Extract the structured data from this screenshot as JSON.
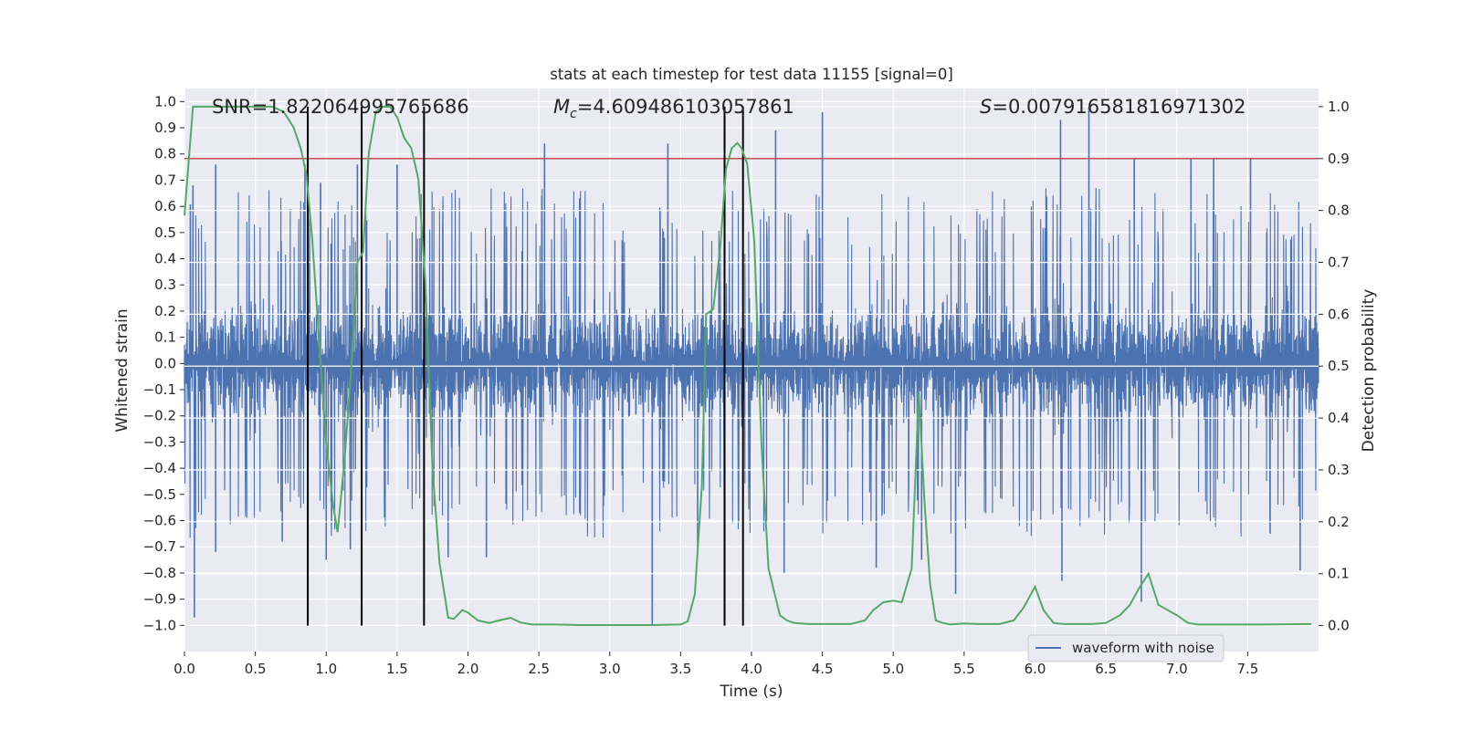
{
  "chart_data": {
    "type": "line",
    "title": "stats at each timestep for test data 11155 [signal=0]",
    "xlabel": "Time (s)",
    "ylabel_left": "Whitened strain",
    "ylabel_right": "Detection probability",
    "xlim": [
      0.0,
      8.0
    ],
    "ylim_left": [
      -1.1,
      1.05
    ],
    "ylim_right": [
      -0.05,
      1.035
    ],
    "xticks": [
      0.0,
      0.5,
      1.0,
      1.5,
      2.0,
      2.5,
      3.0,
      3.5,
      4.0,
      4.5,
      5.0,
      5.5,
      6.0,
      6.5,
      7.0,
      7.5
    ],
    "xtick_labels": [
      "0.0",
      "0.5",
      "1.0",
      "1.5",
      "2.0",
      "2.5",
      "3.0",
      "3.5",
      "4.0",
      "4.5",
      "5.0",
      "5.5",
      "6.0",
      "6.5",
      "7.0",
      "7.5"
    ],
    "yticks_left": [
      1.0,
      0.9,
      0.8,
      0.7,
      0.6,
      0.5,
      0.4,
      0.3,
      0.2,
      0.1,
      0.0,
      -0.1,
      -0.2,
      -0.3,
      -0.4,
      -0.5,
      -0.6,
      -0.7,
      -0.8,
      -0.9,
      -1.0
    ],
    "ytick_labels_left": [
      "1.0",
      "0.9",
      "0.8",
      "0.7",
      "0.6",
      "0.5",
      "0.4",
      "0.3",
      "0.2",
      "0.1",
      "0.0",
      "−0.1",
      "−0.2",
      "−0.3",
      "−0.4",
      "−0.5",
      "−0.6",
      "−0.7",
      "−0.8",
      "−0.9",
      "−1.0"
    ],
    "yticks_right": [
      1.0,
      0.9,
      0.8,
      0.7,
      0.6,
      0.5,
      0.4,
      0.3,
      0.2,
      0.1,
      0.0
    ],
    "ytick_labels_right": [
      "1.0",
      "0.9",
      "0.8",
      "0.7",
      "0.6",
      "0.5",
      "0.4",
      "0.3",
      "0.2",
      "0.1",
      "0.0"
    ],
    "annotations": {
      "snr": "SNR=1.822064995765686",
      "mc_symbol": "M",
      "mc_sub": "c",
      "mc_value": "=4.609486103057861",
      "s_symbol": "S",
      "s_value": "=0.007916581816971302"
    },
    "threshold": {
      "value": 0.9,
      "axis": "right",
      "color": "#c44e52"
    },
    "vertical_markers": [
      0.87,
      1.25,
      1.69,
      3.81,
      3.94
    ],
    "legend": {
      "label": "waveform with noise",
      "location": "lower-right"
    },
    "series": [
      {
        "name": "waveform with noise",
        "axis": "left",
        "color": "#4c72b0",
        "kind": "noise",
        "envelope": 0.38,
        "spikes": [
          {
            "x": 0.07,
            "y": -0.97
          },
          {
            "x": 0.06,
            "y": 0.68
          },
          {
            "x": 0.22,
            "y": -0.72
          },
          {
            "x": 0.22,
            "y": 0.76
          },
          {
            "x": 0.69,
            "y": -0.68
          },
          {
            "x": 0.85,
            "y": 0.76
          },
          {
            "x": 0.96,
            "y": 0.69
          },
          {
            "x": 1.0,
            "y": -0.75
          },
          {
            "x": 1.17,
            "y": -0.71
          },
          {
            "x": 1.22,
            "y": 0.76
          },
          {
            "x": 1.5,
            "y": 0.76
          },
          {
            "x": 1.69,
            "y": 0.77
          },
          {
            "x": 1.86,
            "y": -0.74
          },
          {
            "x": 2.13,
            "y": -0.74
          },
          {
            "x": 2.54,
            "y": 0.84
          },
          {
            "x": 3.3,
            "y": -1.0
          },
          {
            "x": 3.41,
            "y": 0.84
          },
          {
            "x": 3.62,
            "y": -0.7
          },
          {
            "x": 3.81,
            "y": -0.78
          },
          {
            "x": 4.17,
            "y": 0.89
          },
          {
            "x": 4.23,
            "y": -0.8
          },
          {
            "x": 4.5,
            "y": 0.96
          },
          {
            "x": 4.88,
            "y": -0.78
          },
          {
            "x": 5.44,
            "y": -0.88
          },
          {
            "x": 6.18,
            "y": 0.93
          },
          {
            "x": 6.19,
            "y": -0.83
          },
          {
            "x": 6.38,
            "y": 0.98
          },
          {
            "x": 6.75,
            "y": -0.91
          },
          {
            "x": 7.1,
            "y": 0.78
          },
          {
            "x": 7.26,
            "y": 0.78
          },
          {
            "x": 7.52,
            "y": 0.78
          },
          {
            "x": 7.87,
            "y": -0.79
          },
          {
            "x": 5.2,
            "y": -0.75
          },
          {
            "x": 6.7,
            "y": 0.78
          }
        ]
      },
      {
        "name": "detection probability",
        "axis": "right",
        "color": "#55a868",
        "x": [
          0.0,
          0.06,
          0.12,
          0.3,
          0.5,
          0.62,
          0.7,
          0.77,
          0.82,
          0.86,
          0.9,
          0.95,
          1.0,
          1.05,
          1.08,
          1.13,
          1.18,
          1.22,
          1.26,
          1.3,
          1.35,
          1.4,
          1.45,
          1.5,
          1.55,
          1.6,
          1.65,
          1.7,
          1.75,
          1.8,
          1.86,
          1.9,
          1.96,
          2.0,
          2.07,
          2.15,
          2.22,
          2.3,
          2.37,
          2.45,
          2.6,
          2.8,
          3.0,
          3.3,
          3.5,
          3.55,
          3.6,
          3.65,
          3.68,
          3.73,
          3.78,
          3.82,
          3.86,
          3.9,
          3.93,
          3.97,
          4.02,
          4.07,
          4.12,
          4.2,
          4.25,
          4.3,
          4.4,
          4.5,
          4.7,
          4.8,
          4.86,
          4.93,
          5.0,
          5.06,
          5.13,
          5.18,
          5.22,
          5.26,
          5.3,
          5.35,
          5.4,
          5.5,
          5.6,
          5.75,
          5.85,
          5.92,
          6.0,
          6.06,
          6.13,
          6.2,
          6.3,
          6.4,
          6.5,
          6.6,
          6.67,
          6.73,
          6.8,
          6.87,
          7.0,
          7.08,
          7.15,
          7.3,
          7.6,
          7.95
        ],
        "y": [
          0.79,
          1.0,
          1.0,
          1.0,
          1.0,
          1.0,
          0.99,
          0.96,
          0.92,
          0.87,
          0.75,
          0.55,
          0.35,
          0.23,
          0.18,
          0.32,
          0.51,
          0.7,
          0.72,
          0.91,
          0.99,
          1.0,
          1.0,
          0.98,
          0.94,
          0.92,
          0.86,
          0.66,
          0.3,
          0.12,
          0.015,
          0.013,
          0.03,
          0.025,
          0.01,
          0.005,
          0.01,
          0.015,
          0.006,
          0.002,
          0.002,
          0.001,
          0.001,
          0.001,
          0.002,
          0.008,
          0.06,
          0.27,
          0.6,
          0.61,
          0.73,
          0.88,
          0.92,
          0.93,
          0.92,
          0.89,
          0.74,
          0.35,
          0.11,
          0.02,
          0.01,
          0.005,
          0.003,
          0.003,
          0.003,
          0.01,
          0.03,
          0.045,
          0.048,
          0.045,
          0.11,
          0.45,
          0.24,
          0.08,
          0.01,
          0.005,
          0.002,
          0.004,
          0.003,
          0.003,
          0.01,
          0.035,
          0.075,
          0.03,
          0.005,
          0.003,
          0.003,
          0.003,
          0.005,
          0.02,
          0.04,
          0.07,
          0.1,
          0.04,
          0.02,
          0.005,
          0.002,
          0.002,
          0.002,
          0.003
        ]
      }
    ]
  }
}
